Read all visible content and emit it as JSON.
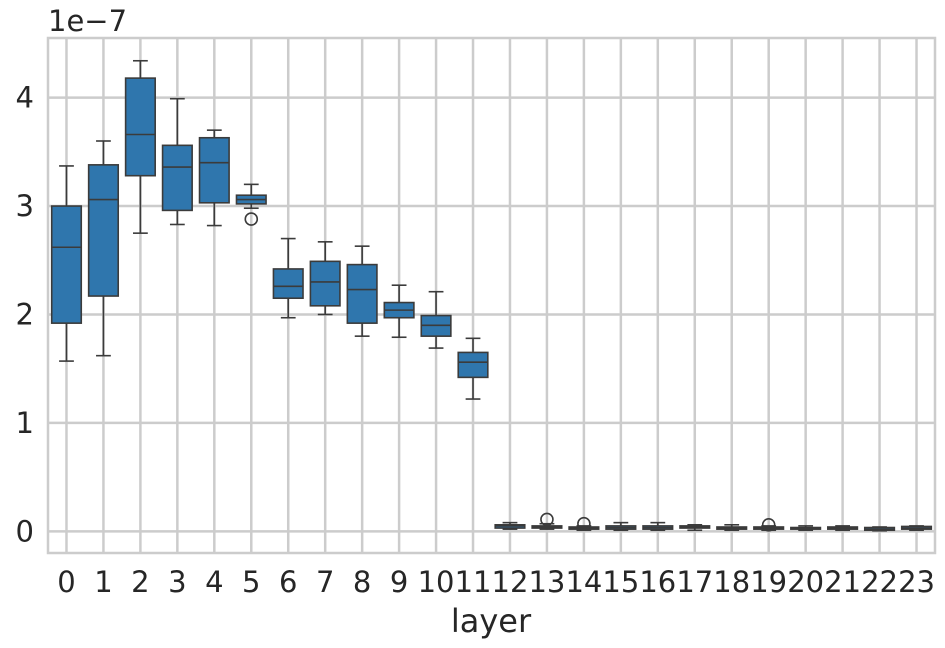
{
  "chart_data": {
    "type": "box",
    "xlabel": "layer",
    "ylabel": "",
    "offset_text": "1e−7",
    "y_scale_exponent": -7,
    "ylim": [
      -0.2,
      4.55
    ],
    "yticks": [
      0,
      1,
      2,
      3,
      4
    ],
    "grid": true,
    "box_color": "#2f76ad",
    "line_color": "#3b3b3b",
    "categories": [
      "0",
      "1",
      "2",
      "3",
      "4",
      "5",
      "6",
      "7",
      "8",
      "9",
      "10",
      "11",
      "12",
      "13",
      "14",
      "15",
      "16",
      "17",
      "18",
      "19",
      "20",
      "21",
      "22",
      "23"
    ],
    "boxes": [
      {
        "layer": "0",
        "whislo": 1.57,
        "q1": 1.92,
        "med": 2.62,
        "q3": 3.0,
        "whishi": 3.37,
        "fliers": []
      },
      {
        "layer": "1",
        "whislo": 1.62,
        "q1": 2.17,
        "med": 3.06,
        "q3": 3.38,
        "whishi": 3.6,
        "fliers": []
      },
      {
        "layer": "2",
        "whislo": 2.75,
        "q1": 3.28,
        "med": 3.66,
        "q3": 4.18,
        "whishi": 4.34,
        "fliers": []
      },
      {
        "layer": "3",
        "whislo": 2.83,
        "q1": 2.96,
        "med": 3.36,
        "q3": 3.56,
        "whishi": 3.99,
        "fliers": []
      },
      {
        "layer": "4",
        "whislo": 2.82,
        "q1": 3.03,
        "med": 3.4,
        "q3": 3.63,
        "whishi": 3.7,
        "fliers": []
      },
      {
        "layer": "5",
        "whislo": 2.98,
        "q1": 3.02,
        "med": 3.06,
        "q3": 3.1,
        "whishi": 3.2,
        "fliers": [
          2.88
        ]
      },
      {
        "layer": "6",
        "whislo": 1.97,
        "q1": 2.15,
        "med": 2.26,
        "q3": 2.42,
        "whishi": 2.7,
        "fliers": []
      },
      {
        "layer": "7",
        "whislo": 2.0,
        "q1": 2.08,
        "med": 2.3,
        "q3": 2.49,
        "whishi": 2.67,
        "fliers": []
      },
      {
        "layer": "8",
        "whislo": 1.8,
        "q1": 1.92,
        "med": 2.23,
        "q3": 2.46,
        "whishi": 2.63,
        "fliers": []
      },
      {
        "layer": "9",
        "whislo": 1.79,
        "q1": 1.97,
        "med": 2.04,
        "q3": 2.11,
        "whishi": 2.27,
        "fliers": []
      },
      {
        "layer": "10",
        "whislo": 1.69,
        "q1": 1.8,
        "med": 1.9,
        "q3": 1.99,
        "whishi": 2.21,
        "fliers": []
      },
      {
        "layer": "11",
        "whislo": 1.22,
        "q1": 1.42,
        "med": 1.56,
        "q3": 1.65,
        "whishi": 1.78,
        "fliers": []
      },
      {
        "layer": "12",
        "whislo": 0.02,
        "q1": 0.03,
        "med": 0.05,
        "q3": 0.06,
        "whishi": 0.08,
        "fliers": []
      },
      {
        "layer": "13",
        "whislo": 0.02,
        "q1": 0.03,
        "med": 0.04,
        "q3": 0.05,
        "whishi": 0.07,
        "fliers": [
          0.11
        ]
      },
      {
        "layer": "14",
        "whislo": 0.01,
        "q1": 0.02,
        "med": 0.03,
        "q3": 0.04,
        "whishi": 0.05,
        "fliers": [
          0.07
        ]
      },
      {
        "layer": "15",
        "whislo": 0.01,
        "q1": 0.02,
        "med": 0.035,
        "q3": 0.05,
        "whishi": 0.08,
        "fliers": []
      },
      {
        "layer": "16",
        "whislo": 0.01,
        "q1": 0.02,
        "med": 0.035,
        "q3": 0.05,
        "whishi": 0.08,
        "fliers": []
      },
      {
        "layer": "17",
        "whislo": 0.01,
        "q1": 0.03,
        "med": 0.04,
        "q3": 0.05,
        "whishi": 0.06,
        "fliers": []
      },
      {
        "layer": "18",
        "whislo": 0.01,
        "q1": 0.02,
        "med": 0.03,
        "q3": 0.04,
        "whishi": 0.06,
        "fliers": []
      },
      {
        "layer": "19",
        "whislo": 0.01,
        "q1": 0.02,
        "med": 0.03,
        "q3": 0.04,
        "whishi": 0.05,
        "fliers": [
          0.06
        ]
      },
      {
        "layer": "20",
        "whislo": 0.01,
        "q1": 0.02,
        "med": 0.025,
        "q3": 0.035,
        "whishi": 0.05,
        "fliers": []
      },
      {
        "layer": "21",
        "whislo": 0.01,
        "q1": 0.02,
        "med": 0.03,
        "q3": 0.04,
        "whishi": 0.05,
        "fliers": []
      },
      {
        "layer": "22",
        "whislo": 0.005,
        "q1": 0.01,
        "med": 0.02,
        "q3": 0.035,
        "whishi": 0.04,
        "fliers": []
      },
      {
        "layer": "23",
        "whislo": 0.01,
        "q1": 0.02,
        "med": 0.03,
        "q3": 0.045,
        "whishi": 0.05,
        "fliers": []
      }
    ]
  }
}
